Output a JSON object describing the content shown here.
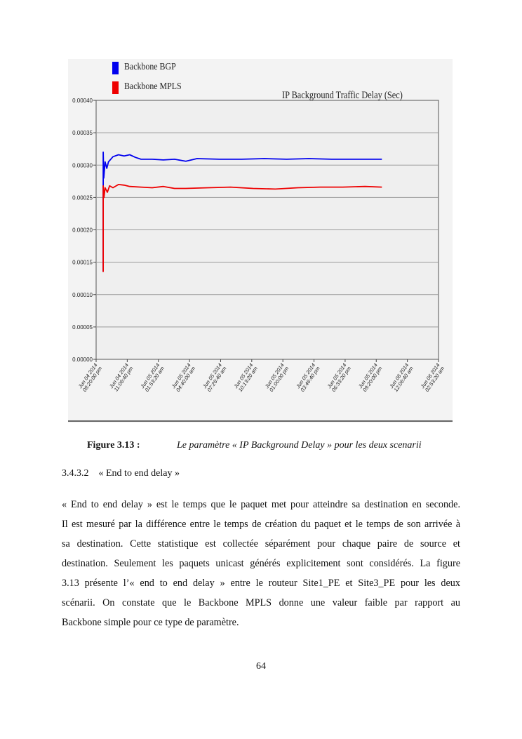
{
  "chart_data": {
    "type": "line",
    "title": "IP Background Traffic Delay (Sec)",
    "xlabel": "",
    "ylabel": "",
    "ylim": [
      0,
      0.0004
    ],
    "yticks": [
      "0.00000",
      "0.00005",
      "0.00010",
      "0.00015",
      "0.00020",
      "0.00025",
      "0.00030",
      "0.00035",
      "0.00040"
    ],
    "xlim_hours": [
      0,
      30.556
    ],
    "xticks": [
      "Jun 04 2014 08:20:00 pm",
      "Jun 04 2014 11:06:40 pm",
      "Jun 05 2014 01:53:20 am",
      "Jun 05 2014 04:40:00 am",
      "Jun 05 2014 07:26:40 am",
      "Jun 05 2014 10:13:20 am",
      "Jun 05 2014 01:00:00 pm",
      "Jun 05 2014 03:46:40 pm",
      "Jun 05 2014 06:33:20 pm",
      "Jun 05 2014 09:20:00 pm",
      "Jun 06 2014 12:06:40 am",
      "Jun 06 2014 02:53:20 am"
    ],
    "grid": true,
    "legend_position": "top-left",
    "series": [
      {
        "name": "Backbone BGP",
        "color": "#0000ee",
        "x": [
          0.63,
          0.63,
          0.68,
          0.8,
          0.95,
          1.1,
          1.5,
          2.0,
          2.5,
          3.0,
          3.5,
          4.0,
          5,
          6,
          7,
          8,
          9,
          11,
          13,
          15,
          17,
          19,
          21,
          23,
          25.5
        ],
        "y": [
          0.000135,
          0.00032,
          0.00028,
          0.000305,
          0.000295,
          0.000305,
          0.000313,
          0.000316,
          0.000314,
          0.000316,
          0.000312,
          0.000309,
          0.000309,
          0.000308,
          0.000309,
          0.000306,
          0.00031,
          0.000309,
          0.000309,
          0.00031,
          0.000309,
          0.00031,
          0.000309,
          0.000309,
          0.000309
        ]
      },
      {
        "name": "Backbone MPLS",
        "color": "#ee0000",
        "x": [
          0.63,
          0.63,
          0.7,
          0.8,
          1.0,
          1.2,
          1.5,
          2,
          2.5,
          3,
          4,
          5,
          6,
          7,
          8,
          10,
          12,
          14,
          16,
          18,
          20,
          22,
          24,
          25.5
        ],
        "y": [
          0.000135,
          0.000268,
          0.00025,
          0.000265,
          0.000258,
          0.000268,
          0.000265,
          0.00027,
          0.000269,
          0.000267,
          0.000266,
          0.000265,
          0.000267,
          0.000264,
          0.000264,
          0.000265,
          0.000266,
          0.000264,
          0.000263,
          0.000265,
          0.000266,
          0.000266,
          0.000267,
          0.000266
        ]
      }
    ]
  },
  "caption": {
    "label": "Figure 3.13 :",
    "text": "Le paramètre « IP Background Delay »  pour les deux scenarii"
  },
  "section": {
    "number": "3.4.3.2",
    "title": "« End to end delay »"
  },
  "paragraph_lines": [
    "« End to end delay » est le temps que le paquet met pour atteindre sa destination en seconde.",
    "Il est mesuré par la différence entre le temps de création du paquet et le temps de son arrivée à",
    "sa destination. Cette statistique est collectée séparément pour chaque paire de source et",
    "destination. Seulement les paquets unicast générés explicitement sont considérés. La figure",
    "3.13 présente l’« end to end delay » entre le routeur Site1_PE et Site3_PE pour les deux",
    "scénarii. On constate que le Backbone MPLS donne une valeur faible par rapport au",
    "Backbone simple pour ce type de paramètre."
  ],
  "page_number": "64"
}
